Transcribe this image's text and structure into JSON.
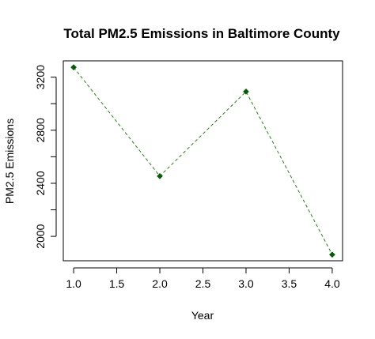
{
  "chart_data": {
    "type": "line",
    "title": "Total PM2.5 Emissions in Baltimore County",
    "xlabel": "Year",
    "ylabel": "PM2.5 Emissions",
    "x": [
      1,
      2,
      3,
      4
    ],
    "series": [
      {
        "values": [
          3274.18,
          2453.92,
          3091.35,
          1862.28
        ]
      }
    ],
    "xlim": [
      0.88,
      4.12
    ],
    "ylim": [
      1816,
      3323
    ],
    "xticks": [
      1.0,
      1.5,
      2.0,
      2.5,
      3.0,
      3.5,
      4.0
    ],
    "xtick_labels": [
      "1.0",
      "1.5",
      "2.0",
      "2.5",
      "3.0",
      "3.5",
      "4.0"
    ],
    "yticks": [
      2000,
      2200,
      2400,
      2600,
      2800,
      3000,
      3200
    ],
    "ytick_labels": [
      "2000",
      "",
      "2400",
      "",
      "2800",
      "",
      "3200"
    ],
    "line_style": "dashed",
    "line_color": "#2e7d1e",
    "marker": "diamond",
    "marker_color": "#0b5a0b",
    "grid": false,
    "legend": "none"
  }
}
